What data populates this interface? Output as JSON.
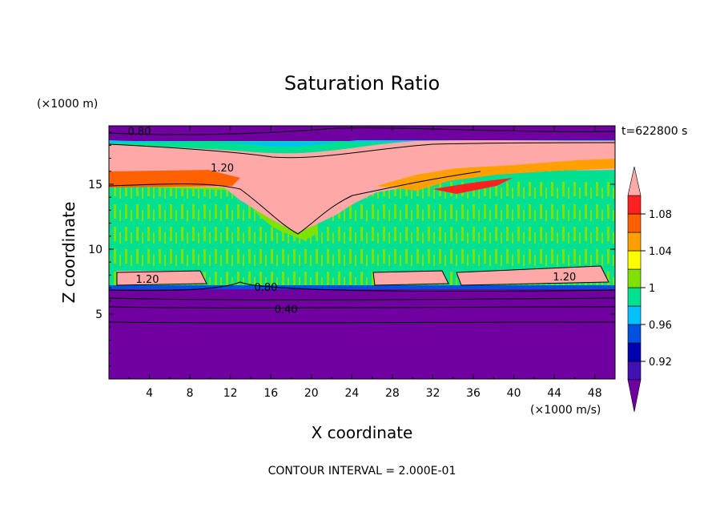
{
  "chart_data": {
    "type": "heatmap",
    "title": "Saturation Ratio",
    "xlabel": "X coordinate",
    "ylabel": "Z coordinate",
    "x_unit": "(×1000 m/s)",
    "y_unit": "(×1000 m)",
    "time_label": "t=622800 s",
    "footer": "CONTOUR INTERVAL = 2.000E-01",
    "xlim": [
      0,
      50
    ],
    "ylim": [
      0,
      19.5
    ],
    "x_ticks": [
      4,
      8,
      12,
      16,
      20,
      24,
      28,
      32,
      36,
      40,
      44,
      48
    ],
    "y_ticks": [
      5,
      10,
      15
    ],
    "colorbar": {
      "levels": [
        0.9,
        0.92,
        0.94,
        0.96,
        0.98,
        1.0,
        1.02,
        1.04,
        1.06,
        1.08,
        1.1
      ],
      "colors": [
        "#7000a0",
        "#4010b0",
        "#0000b0",
        "#0050e0",
        "#00c0ff",
        "#00e090",
        "#80e000",
        "#ffff00",
        "#ffa000",
        "#ff6000",
        "#ff2020",
        "#ffa8a8"
      ],
      "tick_labels": [
        "0.92",
        "0.96",
        "1",
        "1.04",
        "1.08"
      ],
      "tick_values": [
        0.92,
        0.96,
        1.0,
        1.04,
        1.08
      ],
      "extend": "both"
    },
    "contour_labels": [
      {
        "text": "0.80",
        "x": 3.0,
        "y": 19.1
      },
      {
        "text": "1.20",
        "x": 11.2,
        "y": 16.3
      },
      {
        "text": "1.20",
        "x": 3.8,
        "y": 7.7
      },
      {
        "text": "0.80",
        "x": 15.5,
        "y": 7.1
      },
      {
        "text": "0.40",
        "x": 17.5,
        "y": 5.4
      },
      {
        "text": "1.20",
        "x": 45.0,
        "y": 7.9
      }
    ]
  }
}
